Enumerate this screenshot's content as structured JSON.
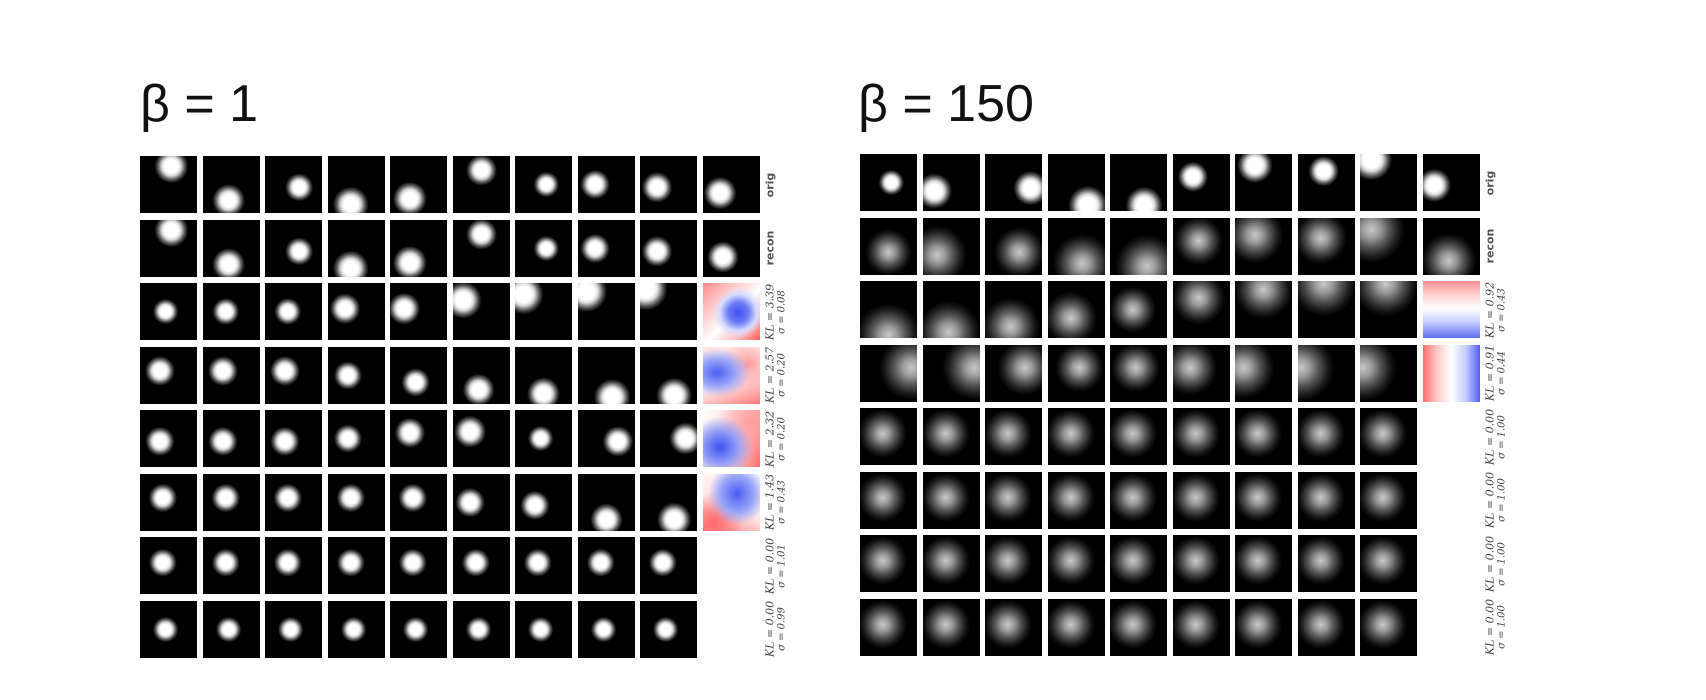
{
  "left": {
    "title": "β = 1",
    "cols": 10,
    "rows": [
      {
        "label1": "orig",
        "label2": "",
        "spot": "sharp",
        "positions": [
          [
            0.55,
            0.18
          ],
          [
            0.45,
            0.78
          ],
          [
            0.6,
            0.55
          ],
          [
            0.4,
            0.85
          ],
          [
            0.35,
            0.75
          ],
          [
            0.5,
            0.25
          ],
          [
            0.55,
            0.5
          ],
          [
            0.3,
            0.5
          ],
          [
            0.3,
            0.55
          ],
          [
            0.35,
            0.65
          ]
        ],
        "last": "black",
        "lastPos": [
          0.3,
          0.65
        ]
      },
      {
        "label1": "recon",
        "label2": "",
        "spot": "sharp",
        "positions": [
          [
            0.55,
            0.18
          ],
          [
            0.45,
            0.78
          ],
          [
            0.6,
            0.55
          ],
          [
            0.4,
            0.85
          ],
          [
            0.35,
            0.75
          ],
          [
            0.5,
            0.25
          ],
          [
            0.55,
            0.5
          ],
          [
            0.3,
            0.5
          ],
          [
            0.3,
            0.55
          ],
          [
            0.35,
            0.65
          ]
        ],
        "last": "black",
        "lastPos": [
          0.35,
          0.65
        ]
      },
      {
        "label1": "KL = 3.39",
        "label2": "σ = 0.08",
        "spot": "sharp",
        "positions": [
          [
            0.45,
            0.5
          ],
          [
            0.4,
            0.5
          ],
          [
            0.4,
            0.5
          ],
          [
            0.3,
            0.45
          ],
          [
            0.25,
            0.45
          ],
          [
            0.18,
            0.3
          ],
          [
            0.15,
            0.2
          ],
          [
            0.15,
            0.15
          ],
          [
            0.1,
            0.1
          ]
        ],
        "last": "heat1"
      },
      {
        "label1": "KL = 2.57",
        "label2": "σ = 0.20",
        "spot": "sharp",
        "positions": [
          [
            0.35,
            0.42
          ],
          [
            0.35,
            0.42
          ],
          [
            0.35,
            0.42
          ],
          [
            0.35,
            0.5
          ],
          [
            0.45,
            0.62
          ],
          [
            0.45,
            0.75
          ],
          [
            0.5,
            0.82
          ],
          [
            0.6,
            0.88
          ],
          [
            0.6,
            0.85
          ]
        ],
        "last": "heat2"
      },
      {
        "label1": "KL = 2.32",
        "label2": "σ = 0.20",
        "spot": "sharp",
        "positions": [
          [
            0.35,
            0.55
          ],
          [
            0.35,
            0.55
          ],
          [
            0.35,
            0.55
          ],
          [
            0.35,
            0.5
          ],
          [
            0.35,
            0.4
          ],
          [
            0.3,
            0.38
          ],
          [
            0.45,
            0.5
          ],
          [
            0.7,
            0.55
          ],
          [
            0.8,
            0.5
          ]
        ],
        "last": "heat3"
      },
      {
        "label1": "KL = 1.43",
        "label2": "σ = 0.43",
        "spot": "sharp",
        "positions": [
          [
            0.4,
            0.42
          ],
          [
            0.4,
            0.42
          ],
          [
            0.4,
            0.42
          ],
          [
            0.4,
            0.42
          ],
          [
            0.4,
            0.42
          ],
          [
            0.3,
            0.5
          ],
          [
            0.35,
            0.55
          ],
          [
            0.5,
            0.8
          ],
          [
            0.6,
            0.8
          ]
        ],
        "last": "heat4"
      },
      {
        "label1": "KL = 0.00",
        "label2": "σ = 1.01",
        "spot": "sharp",
        "positions": [
          [
            0.4,
            0.45
          ],
          [
            0.4,
            0.45
          ],
          [
            0.4,
            0.45
          ],
          [
            0.4,
            0.45
          ],
          [
            0.4,
            0.45
          ],
          [
            0.4,
            0.45
          ],
          [
            0.4,
            0.45
          ],
          [
            0.4,
            0.45
          ],
          [
            0.4,
            0.45
          ]
        ],
        "last": "white"
      },
      {
        "label1": "KL = 0.00",
        "label2": "σ = 0.99",
        "spot": "sharp",
        "positions": [
          [
            0.45,
            0.5
          ],
          [
            0.45,
            0.5
          ],
          [
            0.45,
            0.5
          ],
          [
            0.45,
            0.5
          ],
          [
            0.45,
            0.5
          ],
          [
            0.45,
            0.5
          ],
          [
            0.45,
            0.5
          ],
          [
            0.45,
            0.5
          ],
          [
            0.45,
            0.5
          ]
        ],
        "last": "white"
      }
    ]
  },
  "right": {
    "title": "β = 150",
    "cols": 10,
    "rows": [
      {
        "label1": "orig",
        "label2": "",
        "spot": "sharp",
        "positions": [
          [
            0.55,
            0.5
          ],
          [
            0.2,
            0.65
          ],
          [
            0.8,
            0.6
          ],
          [
            0.7,
            0.9
          ],
          [
            0.6,
            0.9
          ],
          [
            0.35,
            0.4
          ],
          [
            0.35,
            0.2
          ],
          [
            0.45,
            0.3
          ],
          [
            0.2,
            0.1
          ],
          [
            0.2,
            0.55
          ]
        ],
        "last": "black",
        "lastPos": [
          0.2,
          0.55
        ]
      },
      {
        "label1": "recon",
        "label2": "",
        "spot": "blur",
        "positions": [
          [
            0.5,
            0.6
          ],
          [
            0.25,
            0.65
          ],
          [
            0.6,
            0.6
          ],
          [
            0.6,
            0.8
          ],
          [
            0.65,
            0.85
          ],
          [
            0.45,
            0.4
          ],
          [
            0.35,
            0.3
          ],
          [
            0.4,
            0.35
          ],
          [
            0.2,
            0.2
          ],
          [
            0.45,
            0.75
          ]
        ],
        "last": "black",
        "lastPos": [
          0.45,
          0.75
        ]
      },
      {
        "label1": "KL = 0.92",
        "label2": "σ = 0.43",
        "spot": "blur",
        "positions": [
          [
            0.5,
            0.95
          ],
          [
            0.45,
            0.9
          ],
          [
            0.45,
            0.8
          ],
          [
            0.4,
            0.65
          ],
          [
            0.4,
            0.5
          ],
          [
            0.45,
            0.3
          ],
          [
            0.5,
            0.15
          ],
          [
            0.45,
            0.05
          ],
          [
            0.45,
            0.05
          ]
        ],
        "last": "heatH"
      },
      {
        "label1": "KL = 0.91",
        "label2": "σ = 0.44",
        "spot": "blur",
        "positions": [
          [
            0.9,
            0.4
          ],
          [
            0.9,
            0.4
          ],
          [
            0.7,
            0.4
          ],
          [
            0.55,
            0.4
          ],
          [
            0.45,
            0.4
          ],
          [
            0.3,
            0.4
          ],
          [
            0.15,
            0.4
          ],
          [
            0.05,
            0.4
          ],
          [
            0.05,
            0.4
          ]
        ],
        "last": "heatV"
      },
      {
        "label1": "KL = 0.00",
        "label2": "σ = 1.00",
        "spot": "blur",
        "positions": [
          [
            0.4,
            0.45
          ],
          [
            0.4,
            0.45
          ],
          [
            0.4,
            0.45
          ],
          [
            0.4,
            0.45
          ],
          [
            0.4,
            0.45
          ],
          [
            0.4,
            0.45
          ],
          [
            0.4,
            0.45
          ],
          [
            0.4,
            0.45
          ],
          [
            0.4,
            0.45
          ]
        ],
        "last": "white"
      },
      {
        "label1": "KL = 0.00",
        "label2": "σ = 1.00",
        "spot": "blur",
        "positions": [
          [
            0.4,
            0.45
          ],
          [
            0.4,
            0.45
          ],
          [
            0.4,
            0.45
          ],
          [
            0.4,
            0.45
          ],
          [
            0.4,
            0.45
          ],
          [
            0.4,
            0.45
          ],
          [
            0.4,
            0.45
          ],
          [
            0.4,
            0.45
          ],
          [
            0.4,
            0.45
          ]
        ],
        "last": "white"
      },
      {
        "label1": "KL = 0.00",
        "label2": "σ = 1.00",
        "spot": "blur",
        "positions": [
          [
            0.4,
            0.45
          ],
          [
            0.4,
            0.45
          ],
          [
            0.4,
            0.45
          ],
          [
            0.4,
            0.45
          ],
          [
            0.4,
            0.45
          ],
          [
            0.4,
            0.45
          ],
          [
            0.4,
            0.45
          ],
          [
            0.4,
            0.45
          ],
          [
            0.4,
            0.45
          ]
        ],
        "last": "white"
      },
      {
        "label1": "KL = 0.00",
        "label2": "σ = 1.00",
        "spot": "blur",
        "positions": [
          [
            0.4,
            0.45
          ],
          [
            0.4,
            0.45
          ],
          [
            0.4,
            0.45
          ],
          [
            0.4,
            0.45
          ],
          [
            0.4,
            0.45
          ],
          [
            0.4,
            0.45
          ],
          [
            0.4,
            0.45
          ],
          [
            0.4,
            0.45
          ],
          [
            0.4,
            0.45
          ]
        ],
        "last": "white"
      }
    ]
  }
}
